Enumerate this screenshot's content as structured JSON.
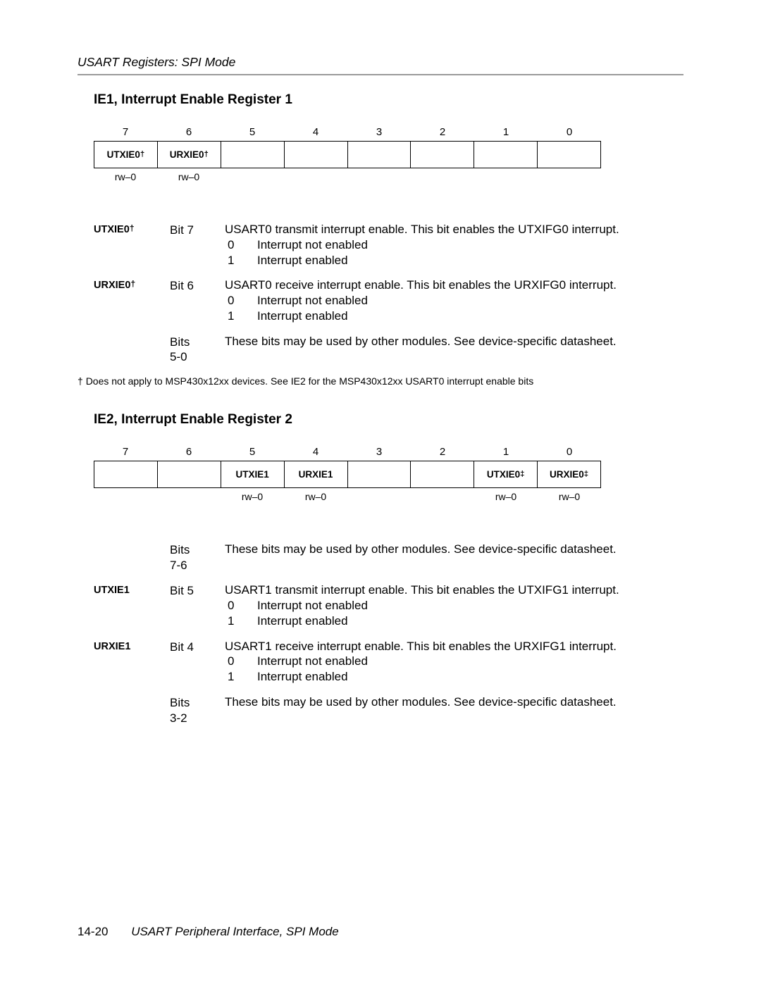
{
  "header": {
    "running": "USART Registers: SPI Mode"
  },
  "footer": {
    "page_number": "14-20",
    "title": "USART Peripheral Interface, SPI Mode"
  },
  "ie1": {
    "title": "IE1, Interrupt Enable Register 1",
    "bit_numbers": [
      "7",
      "6",
      "5",
      "4",
      "3",
      "2",
      "1",
      "0"
    ],
    "cells": [
      "UTXIE0†",
      "URXIE0†",
      "",
      "",
      "",
      "",
      "",
      ""
    ],
    "access": [
      "rw–0",
      "rw–0",
      "",
      "",
      "",
      "",
      "",
      ""
    ],
    "rows": [
      {
        "name": "UTXIE0†",
        "bit": "Bit 7",
        "text": "USART0 transmit interrupt enable. This bit enables the UTXIFG0 interrupt.",
        "values": [
          {
            "k": "0",
            "v": "Interrupt not enabled"
          },
          {
            "k": "1",
            "v": "Interrupt enabled"
          }
        ]
      },
      {
        "name": "URXIE0†",
        "bit": "Bit 6",
        "text": "USART0 receive interrupt enable. This bit enables the URXIFG0 interrupt.",
        "values": [
          {
            "k": "0",
            "v": "Interrupt not enabled"
          },
          {
            "k": "1",
            "v": "Interrupt enabled"
          }
        ]
      },
      {
        "name": "",
        "bit": "Bits 5-0",
        "text": "These bits may be used by other modules. See device-specific datasheet.",
        "values": []
      }
    ],
    "footnote_marker": "†",
    "footnote": "Does not apply to MSP430x12xx devices. See IE2 for the MSP430x12xx USART0 interrupt enable bits"
  },
  "ie2": {
    "title": "IE2, Interrupt Enable Register 2",
    "bit_numbers": [
      "7",
      "6",
      "5",
      "4",
      "3",
      "2",
      "1",
      "0"
    ],
    "cells": [
      "",
      "",
      "UTXIE1",
      "URXIE1",
      "",
      "",
      "UTXIE0‡",
      "URXIE0‡"
    ],
    "access": [
      "",
      "",
      "rw–0",
      "rw–0",
      "",
      "",
      "rw–0",
      "rw–0"
    ],
    "rows": [
      {
        "name": "",
        "bit": "Bits 7-6",
        "text": "These bits may be used by other modules. See device-specific datasheet.",
        "values": []
      },
      {
        "name": "UTXIE1",
        "bit": "Bit 5",
        "text": "USART1 transmit interrupt enable. This bit enables the UTXIFG1 interrupt.",
        "values": [
          {
            "k": "0",
            "v": "Interrupt not enabled"
          },
          {
            "k": "1",
            "v": "Interrupt enabled"
          }
        ]
      },
      {
        "name": "URXIE1",
        "bit": "Bit 4",
        "text": "USART1 receive interrupt enable. This bit enables the URXIFG1 interrupt.",
        "values": [
          {
            "k": "0",
            "v": "Interrupt not enabled"
          },
          {
            "k": "1",
            "v": "Interrupt enabled"
          }
        ]
      },
      {
        "name": "",
        "bit": "Bits 3-2",
        "text": "These bits may be used by other modules. See device-specific datasheet.",
        "values": []
      }
    ]
  }
}
